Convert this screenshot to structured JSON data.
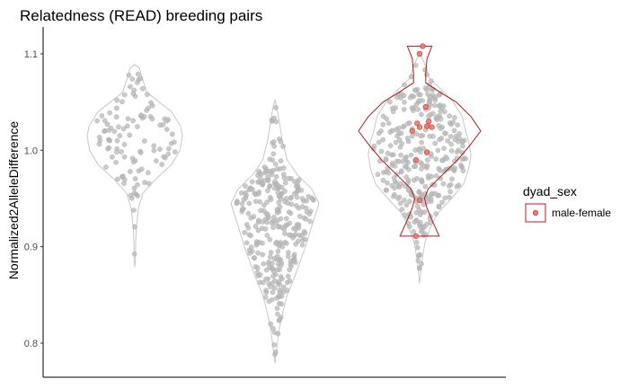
{
  "chart_data": {
    "type": "violin",
    "title": "Relatedness (READ) breeding pairs",
    "xlabel": "",
    "ylabel": "Normalized2AlleleDifference",
    "ylim": [
      0.78,
      1.11
    ],
    "yticks": [
      0.8,
      0.9,
      1.0,
      1.1
    ],
    "ytick_labels": [
      "0.8",
      "0.9",
      "1.0",
      "1.1"
    ],
    "xtick_labels": [],
    "grid": false,
    "legend": {
      "title": "dyad_sex",
      "position": "right",
      "entries": [
        {
          "label": "male-female",
          "color": "#E8796E"
        }
      ]
    },
    "colors": {
      "background_violin": "#c8c8c8",
      "background_points": "#b8b8b8",
      "highlight_outline": "#b01c1c",
      "highlight_points": "#E8796E"
    },
    "groups": [
      {
        "index": 1,
        "n_points": 110,
        "profile": [
          [
            0.879,
            0.0
          ],
          [
            0.885,
            0.01
          ],
          [
            0.895,
            0.012
          ],
          [
            0.905,
            0.014
          ],
          [
            0.92,
            0.025
          ],
          [
            0.94,
            0.06
          ],
          [
            0.955,
            0.13
          ],
          [
            0.97,
            0.34
          ],
          [
            0.985,
            0.6
          ],
          [
            1.0,
            0.74
          ],
          [
            1.015,
            0.78
          ],
          [
            1.025,
            0.75
          ],
          [
            1.04,
            0.6
          ],
          [
            1.05,
            0.4
          ],
          [
            1.06,
            0.2
          ],
          [
            1.075,
            0.12
          ],
          [
            1.085,
            0.08
          ],
          [
            1.089,
            0.0
          ]
        ]
      },
      {
        "index": 2,
        "n_points": 310,
        "profile": [
          [
            0.779,
            0.0
          ],
          [
            0.79,
            0.02
          ],
          [
            0.8,
            0.04
          ],
          [
            0.815,
            0.07
          ],
          [
            0.83,
            0.12
          ],
          [
            0.85,
            0.2
          ],
          [
            0.87,
            0.33
          ],
          [
            0.9,
            0.5
          ],
          [
            0.925,
            0.62
          ],
          [
            0.945,
            0.72
          ],
          [
            0.96,
            0.6
          ],
          [
            0.975,
            0.36
          ],
          [
            0.99,
            0.2
          ],
          [
            1.01,
            0.12
          ],
          [
            1.03,
            0.07
          ],
          [
            1.045,
            0.03
          ],
          [
            1.052,
            0.0
          ]
        ]
      },
      {
        "index": 3,
        "n_points": 330,
        "profile": [
          [
            0.862,
            0.0
          ],
          [
            0.875,
            0.02
          ],
          [
            0.89,
            0.05
          ],
          [
            0.905,
            0.09
          ],
          [
            0.92,
            0.18
          ],
          [
            0.935,
            0.3
          ],
          [
            0.95,
            0.52
          ],
          [
            0.965,
            0.72
          ],
          [
            0.98,
            0.8
          ],
          [
            0.995,
            0.84
          ],
          [
            1.01,
            0.8
          ],
          [
            1.02,
            0.75
          ],
          [
            1.035,
            0.7
          ],
          [
            1.05,
            0.55
          ],
          [
            1.06,
            0.4
          ],
          [
            1.075,
            0.16
          ],
          [
            1.09,
            0.08
          ],
          [
            1.102,
            0.0
          ]
        ]
      }
    ],
    "highlight": {
      "group": 3,
      "label": "male-female",
      "profile": [
        [
          0.911,
          0.32
        ],
        [
          0.925,
          0.22
        ],
        [
          0.94,
          0.12
        ],
        [
          0.95,
          0.08
        ],
        [
          0.96,
          0.14
        ],
        [
          0.975,
          0.38
        ],
        [
          0.99,
          0.62
        ],
        [
          1.005,
          0.82
        ],
        [
          1.02,
          1.0
        ],
        [
          1.035,
          0.84
        ],
        [
          1.05,
          0.6
        ],
        [
          1.06,
          0.34
        ],
        [
          1.07,
          0.1
        ],
        [
          1.08,
          0.1
        ],
        [
          1.095,
          0.12
        ],
        [
          1.108,
          0.2
        ]
      ],
      "points": [
        [
          -0.06,
          0.911
        ],
        [
          0.05,
          1.108
        ],
        [
          0.0,
          1.1
        ],
        [
          -0.04,
          1.028
        ],
        [
          0.12,
          1.025
        ],
        [
          0.0,
          1.024
        ],
        [
          0.1,
          1.045
        ],
        [
          0.2,
          1.024
        ],
        [
          -0.12,
          1.02
        ],
        [
          0.15,
          1.03
        ],
        [
          -0.06,
          0.99
        ],
        [
          0.12,
          0.998
        ],
        [
          0.0,
          0.948
        ]
      ]
    }
  }
}
